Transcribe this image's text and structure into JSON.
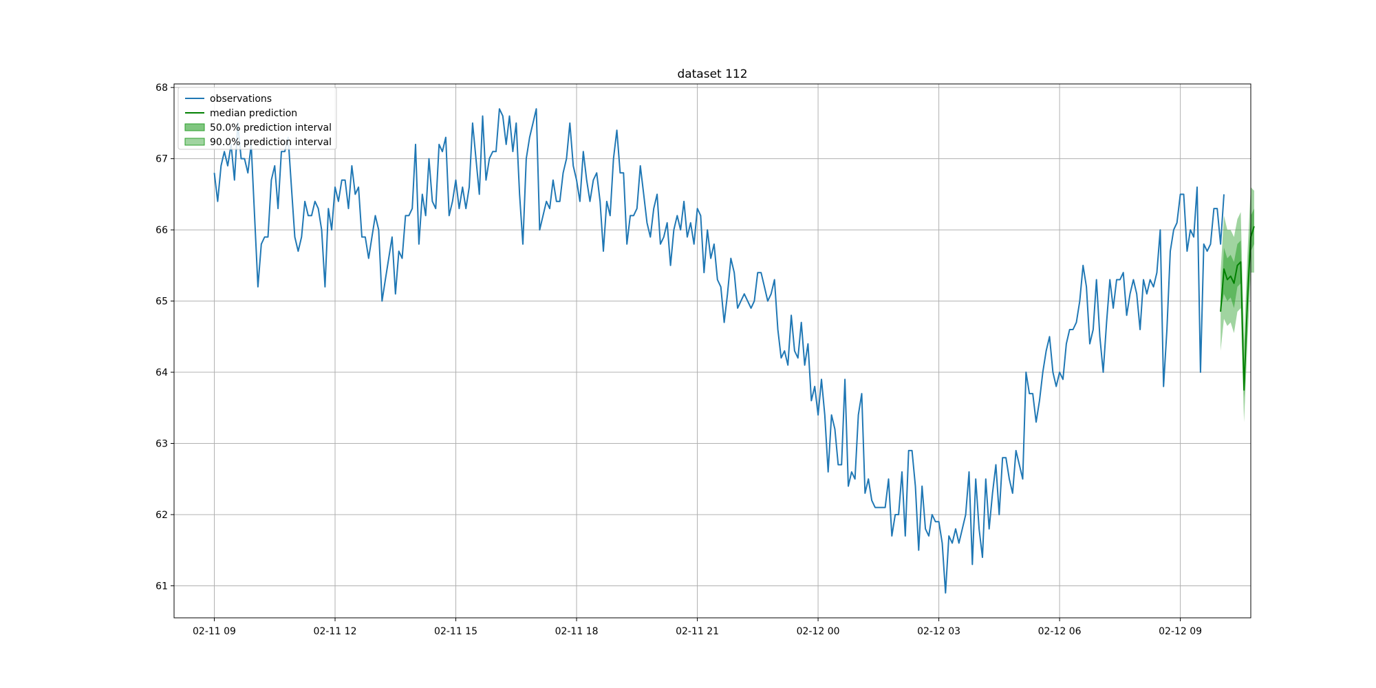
{
  "chart_data": {
    "type": "line",
    "title": "dataset 112",
    "xlabel": "",
    "ylabel": "",
    "x_start": "2021-02-11 09:00",
    "x_step_minutes": 5,
    "xlim": [
      "2021-02-11 08:00",
      "2021-02-12 10:45"
    ],
    "ylim": [
      60.55,
      68.05
    ],
    "x_ticks": [
      "02-11 09",
      "02-11 12",
      "02-11 15",
      "02-11 18",
      "02-11 21",
      "02-12 00",
      "02-12 03",
      "02-12 06",
      "02-12 09"
    ],
    "y_ticks": [
      "61",
      "62",
      "63",
      "64",
      "65",
      "66",
      "67",
      "68"
    ],
    "grid": true,
    "legend_position": "top-left",
    "legend": [
      "observations",
      "median prediction",
      "50.0% prediction interval",
      "90.0% prediction interval"
    ],
    "colors": {
      "observations": "#1f77b4",
      "median": "#008000",
      "interval": "#2ca02c"
    },
    "series": [
      {
        "name": "observations",
        "values": [
          66.8,
          66.4,
          66.9,
          67.1,
          66.9,
          67.2,
          66.7,
          67.5,
          67.0,
          67.0,
          66.8,
          67.2,
          66.2,
          65.2,
          65.8,
          65.9,
          65.9,
          66.7,
          66.9,
          66.3,
          67.1,
          67.1,
          67.3,
          66.6,
          65.9,
          65.7,
          65.9,
          66.4,
          66.2,
          66.2,
          66.4,
          66.3,
          66.0,
          65.2,
          66.3,
          66.0,
          66.6,
          66.4,
          66.7,
          66.7,
          66.3,
          66.9,
          66.5,
          66.6,
          65.9,
          65.9,
          65.6,
          65.9,
          66.2,
          66.0,
          65.0,
          65.3,
          65.6,
          65.9,
          65.1,
          65.7,
          65.6,
          66.2,
          66.2,
          66.3,
          67.2,
          65.8,
          66.5,
          66.2,
          67.0,
          66.4,
          66.3,
          67.2,
          67.1,
          67.3,
          66.2,
          66.4,
          66.7,
          66.3,
          66.6,
          66.3,
          66.6,
          67.5,
          67.0,
          66.5,
          67.6,
          66.7,
          67.0,
          67.1,
          67.1,
          67.7,
          67.6,
          67.2,
          67.6,
          67.1,
          67.5,
          66.5,
          65.8,
          67.0,
          67.3,
          67.5,
          67.7,
          66.0,
          66.2,
          66.4,
          66.3,
          66.7,
          66.4,
          66.4,
          66.8,
          67.0,
          67.5,
          66.9,
          66.7,
          66.4,
          67.1,
          66.7,
          66.4,
          66.7,
          66.8,
          66.4,
          65.7,
          66.4,
          66.2,
          67.0,
          67.4,
          66.8,
          66.8,
          65.8,
          66.2,
          66.2,
          66.3,
          66.9,
          66.5,
          66.1,
          65.9,
          66.3,
          66.5,
          65.8,
          65.9,
          66.1,
          65.5,
          66.0,
          66.2,
          66.0,
          66.4,
          65.9,
          66.1,
          65.8,
          66.3,
          66.2,
          65.4,
          66.0,
          65.6,
          65.8,
          65.3,
          65.2,
          64.7,
          65.1,
          65.6,
          65.4,
          64.9,
          65.0,
          65.1,
          65.0,
          64.9,
          65.0,
          65.4,
          65.4,
          65.2,
          65.0,
          65.1,
          65.3,
          64.6,
          64.2,
          64.3,
          64.1,
          64.8,
          64.3,
          64.2,
          64.7,
          64.1,
          64.4,
          63.6,
          63.8,
          63.4,
          63.9,
          63.4,
          62.6,
          63.4,
          63.2,
          62.7,
          62.7,
          63.9,
          62.4,
          62.6,
          62.5,
          63.4,
          63.7,
          62.3,
          62.5,
          62.2,
          62.1,
          62.1,
          62.1,
          62.1,
          62.5,
          61.7,
          62.0,
          62.0,
          62.6,
          61.7,
          62.9,
          62.9,
          62.4,
          61.5,
          62.4,
          61.8,
          61.7,
          62.0,
          61.9,
          61.9,
          61.6,
          60.9,
          61.7,
          61.6,
          61.8,
          61.6,
          61.8,
          62.0,
          62.6,
          61.3,
          62.5,
          61.8,
          61.4,
          62.5,
          61.8,
          62.3,
          62.7,
          62.0,
          62.8,
          62.8,
          62.5,
          62.3,
          62.9,
          62.7,
          62.5,
          64.0,
          63.7,
          63.7,
          63.3,
          63.6,
          64.0,
          64.3,
          64.5,
          64.0,
          63.8,
          64.0,
          63.9,
          64.4,
          64.6,
          64.6,
          64.7,
          65.0,
          65.5,
          65.2,
          64.4,
          64.6,
          65.3,
          64.5,
          64.0,
          64.7,
          65.3,
          64.9,
          65.3,
          65.3,
          65.4,
          64.8,
          65.1,
          65.3,
          65.1,
          64.6,
          65.3,
          65.1,
          65.3,
          65.2,
          65.4,
          66.0,
          63.8,
          64.6,
          65.7,
          66.0,
          66.1,
          66.5,
          66.5,
          65.7,
          66.0,
          65.9,
          66.6,
          64.0,
          65.8,
          65.7,
          65.8,
          66.3,
          66.3,
          65.8,
          66.5
        ]
      },
      {
        "name": "median prediction",
        "x_offset": 300,
        "values": [
          64.85,
          65.45,
          65.3,
          65.35,
          65.25,
          65.5,
          65.55,
          63.75,
          65.0,
          65.9,
          66.05
        ]
      },
      {
        "name": "50.0% prediction interval",
        "x_offset": 300,
        "lower": [
          64.85,
          65.1,
          65.0,
          65.05,
          64.9,
          65.2,
          65.25,
          63.65,
          64.75,
          65.7,
          65.8
        ],
        "upper": [
          64.85,
          65.75,
          65.6,
          65.65,
          65.55,
          65.8,
          65.85,
          64.0,
          65.3,
          66.2,
          66.3
        ]
      },
      {
        "name": "90.0% prediction interval",
        "x_offset": 300,
        "lower": [
          64.3,
          64.75,
          64.65,
          64.7,
          64.55,
          64.85,
          64.9,
          63.3,
          64.4,
          65.4,
          65.4
        ],
        "upper": [
          65.4,
          66.2,
          66.0,
          66.0,
          65.9,
          66.15,
          66.25,
          64.45,
          65.65,
          66.6,
          66.55
        ]
      }
    ]
  }
}
